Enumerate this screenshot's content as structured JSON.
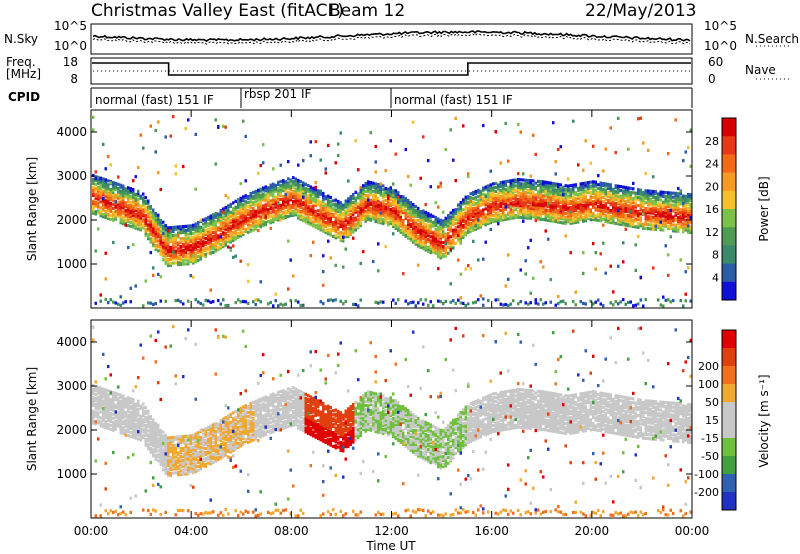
{
  "header": {
    "site": "Christmas Valley East (fitACF)",
    "beam": "Beam 12",
    "date": "22/May/2013"
  },
  "noise_panel": {
    "left_label": "N.Sky",
    "right_label": "N.Search",
    "left_ticks": [
      "10^5",
      "10^0"
    ],
    "right_ticks": [
      "10^5",
      "10^0"
    ]
  },
  "freq_panel": {
    "left_label_1": "Freq.",
    "left_label_2": "[MHz]",
    "right_label": "Nave",
    "left_ticks": [
      "18",
      "8"
    ],
    "right_ticks": [
      "60",
      "0"
    ]
  },
  "cpid": {
    "label": "CPID",
    "modes": [
      {
        "start_h": 0,
        "end_h": 6,
        "name": "normal (fast) 151 IF"
      },
      {
        "start_h": 6,
        "end_h": 12,
        "name": "rbsp 201 IF"
      },
      {
        "start_h": 12,
        "end_h": 24,
        "name": "normal (fast) 151 IF"
      }
    ]
  },
  "colors": {
    "power": [
      "#1010d8",
      "#2a5ca8",
      "#3a8a6a",
      "#4f9a55",
      "#7cc24a",
      "#f5c12a",
      "#f59a25",
      "#f06a18",
      "#e83818",
      "#d80000"
    ],
    "velocity": [
      "#2030c0",
      "#3060b0",
      "#40a040",
      "#70c040",
      "#c8c8c8",
      "#c8c8c8",
      "#f0a830",
      "#f07020",
      "#e04010",
      "#e00000"
    ]
  },
  "chart_data": [
    {
      "type": "heatmap",
      "name": "power",
      "ylabel": "Slant Range [km]",
      "colorbar_label": "Power [dB]",
      "colorbar_ticks": [
        "4",
        "8",
        "12",
        "16",
        "20",
        "24",
        "28"
      ],
      "y_ticks": [
        1000,
        2000,
        3000,
        4000
      ],
      "ylim": [
        0,
        4500
      ],
      "xlim_hours": [
        0,
        24
      ],
      "main_band_range_km": [
        [
          0,
          2550
        ],
        [
          1,
          2350
        ],
        [
          2,
          2150
        ],
        [
          3,
          1350
        ],
        [
          4,
          1400
        ],
        [
          5,
          1700
        ],
        [
          6,
          2050
        ],
        [
          7,
          2300
        ],
        [
          8,
          2500
        ],
        [
          9,
          2200
        ],
        [
          10,
          1900
        ],
        [
          11,
          2400
        ],
        [
          12,
          2250
        ],
        [
          13,
          1800
        ],
        [
          14,
          1500
        ],
        [
          15,
          2100
        ],
        [
          16,
          2350
        ],
        [
          17,
          2450
        ],
        [
          18,
          2400
        ],
        [
          19,
          2300
        ],
        [
          20,
          2400
        ],
        [
          21,
          2300
        ],
        [
          22,
          2200
        ],
        [
          23,
          2150
        ],
        [
          24,
          2100
        ]
      ]
    },
    {
      "type": "heatmap",
      "name": "velocity",
      "ylabel": "Slant Range [km]",
      "colorbar_label": "Velocity [m s⁻¹]",
      "colorbar_ticks": [
        "-200",
        "-100",
        "-50",
        "-15",
        "15",
        "50",
        "100",
        "200"
      ],
      "y_ticks": [
        1000,
        2000,
        3000,
        4000
      ],
      "ylim": [
        0,
        4500
      ],
      "xlabel": "Time UT",
      "x_ticks": [
        "00:00",
        "04:00",
        "08:00",
        "12:00",
        "16:00",
        "20:00",
        "00:00"
      ]
    }
  ]
}
